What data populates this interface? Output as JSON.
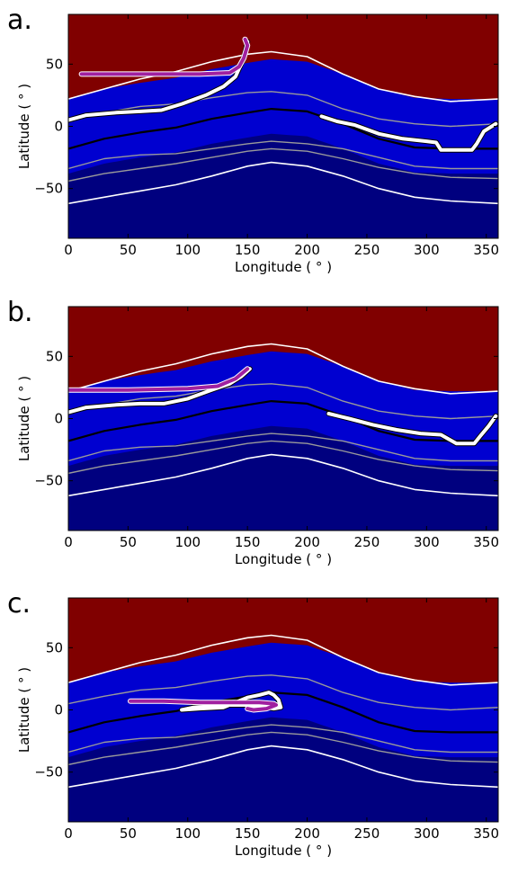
{
  "chart_data": [
    {
      "type": "heatmap",
      "panel_label": "a.",
      "xlabel": "Longitude ( ° )",
      "ylabel": "Latitude ( ° )",
      "xlim": [
        0,
        360
      ],
      "ylim": [
        -90,
        90
      ],
      "xticks": [
        0,
        50,
        100,
        150,
        200,
        250,
        300,
        350
      ],
      "yticks": [
        -50,
        0,
        50
      ],
      "grid": false,
      "colormap": "jet",
      "colors": {
        "background_high": "#800000",
        "background_low": "#00007f"
      },
      "contours": [
        {
          "style": "white",
          "x": [
            0,
            30,
            60,
            90,
            120,
            150,
            170,
            200,
            230,
            260,
            290,
            320,
            360
          ],
          "y": [
            22,
            30,
            38,
            44,
            52,
            58,
            60,
            56,
            42,
            30,
            24,
            20,
            22
          ]
        },
        {
          "style": "gray",
          "x": [
            0,
            30,
            60,
            90,
            120,
            150,
            170,
            200,
            230,
            260,
            290,
            320,
            360
          ],
          "y": [
            5,
            11,
            16,
            18,
            23,
            27,
            28,
            25,
            14,
            6,
            2,
            0,
            2
          ]
        },
        {
          "style": "black",
          "x": [
            0,
            30,
            60,
            90,
            120,
            150,
            170,
            200,
            230,
            260,
            290,
            320,
            360
          ],
          "y": [
            -18,
            -10,
            -5,
            -1,
            6,
            11,
            14,
            12,
            2,
            -10,
            -17,
            -18,
            -18
          ]
        },
        {
          "style": "gray",
          "x": [
            0,
            30,
            60,
            90,
            120,
            150,
            170,
            200,
            230,
            260,
            290,
            320,
            360
          ],
          "y": [
            -34,
            -26,
            -23,
            -22,
            -18,
            -14,
            -12,
            -14,
            -18,
            -25,
            -32,
            -34,
            -34
          ]
        },
        {
          "style": "gray",
          "x": [
            0,
            30,
            60,
            90,
            120,
            150,
            170,
            200,
            230,
            260,
            290,
            320,
            360
          ],
          "y": [
            -44,
            -38,
            -34,
            -30,
            -25,
            -20,
            -18,
            -20,
            -26,
            -33,
            -38,
            -41,
            -42
          ]
        },
        {
          "style": "white",
          "x": [
            0,
            30,
            60,
            90,
            120,
            150,
            170,
            200,
            230,
            260,
            290,
            320,
            360
          ],
          "y": [
            -62,
            -57,
            -52,
            -47,
            -40,
            -32,
            -29,
            -32,
            -40,
            -50,
            -57,
            -60,
            -62
          ]
        }
      ],
      "tracks": [
        {
          "color": "#ffffff",
          "x": [
            0,
            15,
            40,
            60,
            78,
            95,
            115,
            130,
            140,
            147,
            150
          ],
          "y": [
            5,
            9,
            11,
            12,
            13,
            18,
            25,
            32,
            40,
            55,
            68
          ]
        },
        {
          "color": "#ffffff",
          "x": [
            212,
            225,
            240,
            260,
            280,
            300,
            308,
            312,
            325,
            338,
            342,
            348,
            358
          ],
          "y": [
            8,
            4,
            1,
            -6,
            -10,
            -12,
            -13,
            -19,
            -19,
            -19,
            -14,
            -4,
            2
          ]
        },
        {
          "color": "#a020a0",
          "x": [
            11,
            60,
            110,
            135,
            143,
            147,
            150,
            148
          ],
          "y": [
            42,
            42,
            42,
            43,
            48,
            55,
            65,
            70
          ]
        }
      ]
    },
    {
      "type": "heatmap",
      "panel_label": "b.",
      "xlabel": "Longitude ( ° )",
      "ylabel": "Latitude ( ° )",
      "xlim": [
        0,
        360
      ],
      "ylim": [
        -90,
        90
      ],
      "xticks": [
        0,
        50,
        100,
        150,
        200,
        250,
        300,
        350
      ],
      "yticks": [
        -50,
        0,
        50
      ],
      "grid": false,
      "colormap": "jet",
      "colors": {
        "background_high": "#800000",
        "background_low": "#00007f"
      },
      "contours": [
        {
          "style": "white",
          "x": [
            0,
            30,
            60,
            90,
            120,
            150,
            170,
            200,
            230,
            260,
            290,
            320,
            360
          ],
          "y": [
            22,
            30,
            38,
            44,
            52,
            58,
            60,
            56,
            42,
            30,
            24,
            20,
            22
          ]
        },
        {
          "style": "gray",
          "x": [
            0,
            30,
            60,
            90,
            120,
            150,
            170,
            200,
            230,
            260,
            290,
            320,
            360
          ],
          "y": [
            5,
            11,
            16,
            18,
            23,
            27,
            28,
            25,
            14,
            6,
            2,
            0,
            2
          ]
        },
        {
          "style": "black",
          "x": [
            0,
            30,
            60,
            90,
            120,
            150,
            170,
            200,
            230,
            260,
            290,
            320,
            360
          ],
          "y": [
            -18,
            -10,
            -5,
            -1,
            6,
            11,
            14,
            12,
            2,
            -10,
            -17,
            -18,
            -18
          ]
        },
        {
          "style": "gray",
          "x": [
            0,
            30,
            60,
            90,
            120,
            150,
            170,
            200,
            230,
            260,
            290,
            320,
            360
          ],
          "y": [
            -34,
            -26,
            -23,
            -22,
            -18,
            -14,
            -12,
            -14,
            -18,
            -25,
            -32,
            -34,
            -34
          ]
        },
        {
          "style": "gray",
          "x": [
            0,
            30,
            60,
            90,
            120,
            150,
            170,
            200,
            230,
            260,
            290,
            320,
            360
          ],
          "y": [
            -44,
            -38,
            -34,
            -30,
            -25,
            -20,
            -18,
            -20,
            -26,
            -33,
            -38,
            -41,
            -42
          ]
        },
        {
          "style": "white",
          "x": [
            0,
            30,
            60,
            90,
            120,
            150,
            170,
            200,
            230,
            260,
            290,
            320,
            360
          ],
          "y": [
            -62,
            -57,
            -52,
            -47,
            -40,
            -32,
            -29,
            -32,
            -40,
            -50,
            -57,
            -60,
            -62
          ]
        }
      ],
      "tracks": [
        {
          "color": "#ffffff",
          "x": [
            0,
            15,
            40,
            60,
            80,
            100,
            120,
            135,
            145,
            152
          ],
          "y": [
            5,
            9,
            11,
            12,
            12,
            16,
            23,
            28,
            34,
            40
          ]
        },
        {
          "color": "#ffffff",
          "x": [
            218,
            235,
            255,
            275,
            295,
            312,
            325,
            340,
            345,
            352,
            358
          ],
          "y": [
            4,
            0,
            -5,
            -9,
            -12,
            -13,
            -20,
            -20,
            -14,
            -6,
            2
          ]
        },
        {
          "color": "#a020a0",
          "x": [
            0,
            50,
            100,
            125,
            140,
            150
          ],
          "y": [
            23,
            23,
            24,
            26,
            32,
            40
          ]
        }
      ]
    },
    {
      "type": "heatmap",
      "panel_label": "c.",
      "xlabel": "Longitude ( ° )",
      "ylabel": "Latitude ( ° )",
      "xlim": [
        0,
        360
      ],
      "ylim": [
        -90,
        90
      ],
      "xticks": [
        0,
        50,
        100,
        150,
        200,
        250,
        300,
        350
      ],
      "yticks": [
        -50,
        0,
        50
      ],
      "grid": false,
      "colormap": "jet",
      "colors": {
        "background_high": "#800000",
        "background_low": "#00007f"
      },
      "contours": [
        {
          "style": "white",
          "x": [
            0,
            30,
            60,
            90,
            120,
            150,
            170,
            200,
            230,
            260,
            290,
            320,
            360
          ],
          "y": [
            22,
            30,
            38,
            44,
            52,
            58,
            60,
            56,
            42,
            30,
            24,
            20,
            22
          ]
        },
        {
          "style": "gray",
          "x": [
            0,
            30,
            60,
            90,
            120,
            150,
            170,
            200,
            230,
            260,
            290,
            320,
            360
          ],
          "y": [
            5,
            11,
            16,
            18,
            23,
            27,
            28,
            25,
            14,
            6,
            2,
            0,
            2
          ]
        },
        {
          "style": "black",
          "x": [
            0,
            30,
            60,
            90,
            120,
            150,
            170,
            200,
            230,
            260,
            290,
            320,
            360
          ],
          "y": [
            -18,
            -10,
            -5,
            -1,
            6,
            11,
            14,
            12,
            2,
            -10,
            -17,
            -18,
            -18
          ]
        },
        {
          "style": "gray",
          "x": [
            0,
            30,
            60,
            90,
            120,
            150,
            170,
            200,
            230,
            260,
            290,
            320,
            360
          ],
          "y": [
            -34,
            -26,
            -23,
            -22,
            -18,
            -14,
            -12,
            -14,
            -18,
            -25,
            -32,
            -34,
            -34
          ]
        },
        {
          "style": "gray",
          "x": [
            0,
            30,
            60,
            90,
            120,
            150,
            170,
            200,
            230,
            260,
            290,
            320,
            360
          ],
          "y": [
            -44,
            -38,
            -34,
            -30,
            -25,
            -20,
            -18,
            -20,
            -26,
            -33,
            -38,
            -41,
            -42
          ]
        },
        {
          "style": "white",
          "x": [
            0,
            30,
            60,
            90,
            120,
            150,
            170,
            200,
            230,
            260,
            290,
            320,
            360
          ],
          "y": [
            -62,
            -57,
            -52,
            -47,
            -40,
            -32,
            -29,
            -32,
            -40,
            -50,
            -57,
            -60,
            -62
          ]
        }
      ],
      "tracks": [
        {
          "color": "#ffffff",
          "x": [
            95,
            110,
            130,
            140,
            150,
            160,
            168,
            172,
            176,
            178,
            172,
            160,
            150,
            135,
            120,
            105,
            95
          ],
          "y": [
            0,
            1,
            2,
            6,
            10,
            12,
            14,
            12,
            8,
            2,
            1,
            3,
            4,
            4,
            3,
            2,
            0
          ]
        },
        {
          "color": "#a020a0",
          "x": [
            52,
            80,
            110,
            140,
            160,
            172,
            174,
            166,
            155,
            150
          ],
          "y": [
            7,
            7,
            6,
            6,
            6,
            5,
            4,
            1,
            0,
            1
          ]
        }
      ]
    }
  ]
}
